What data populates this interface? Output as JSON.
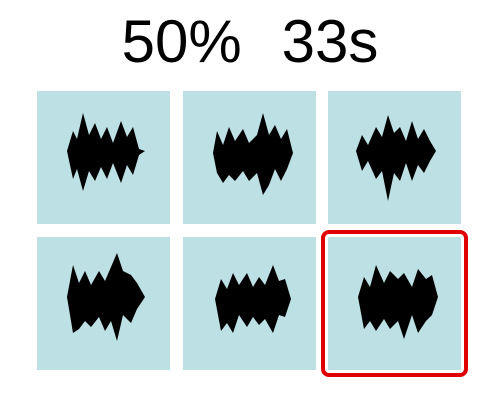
{
  "header": {
    "progress": "50%",
    "timer": "33s"
  },
  "colors": {
    "tile_bg": "#bde0e5",
    "shape": "#000000",
    "selection": "#e00000"
  },
  "game": {
    "rows": 2,
    "cols": 3,
    "selected_index": 5,
    "tiles": [
      {
        "name": "tile-1",
        "shape": "spiky-blob-icon"
      },
      {
        "name": "tile-2",
        "shape": "spiky-blob-icon"
      },
      {
        "name": "tile-3",
        "shape": "spiky-blob-icon"
      },
      {
        "name": "tile-4",
        "shape": "spiky-blob-icon"
      },
      {
        "name": "tile-5",
        "shape": "spiky-blob-icon"
      },
      {
        "name": "tile-6",
        "shape": "spiky-blob-icon"
      }
    ]
  }
}
